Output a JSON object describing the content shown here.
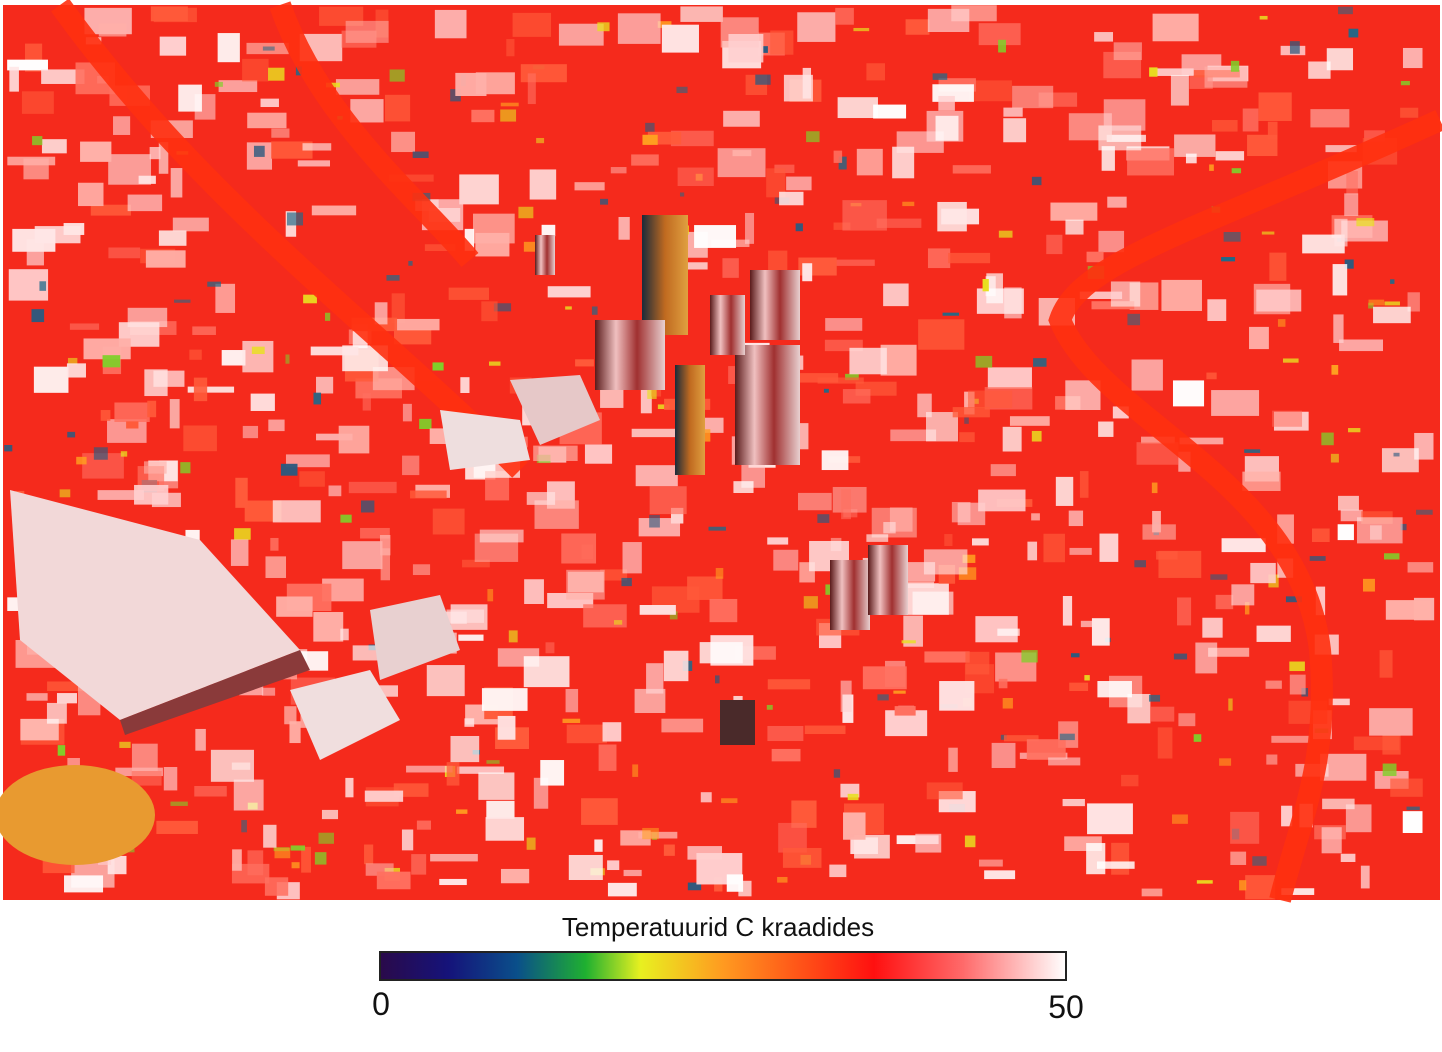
{
  "map": {
    "colorbar": {
      "title": "Temperatuurid C kraadides",
      "min": 0,
      "max": 50
    }
  }
}
